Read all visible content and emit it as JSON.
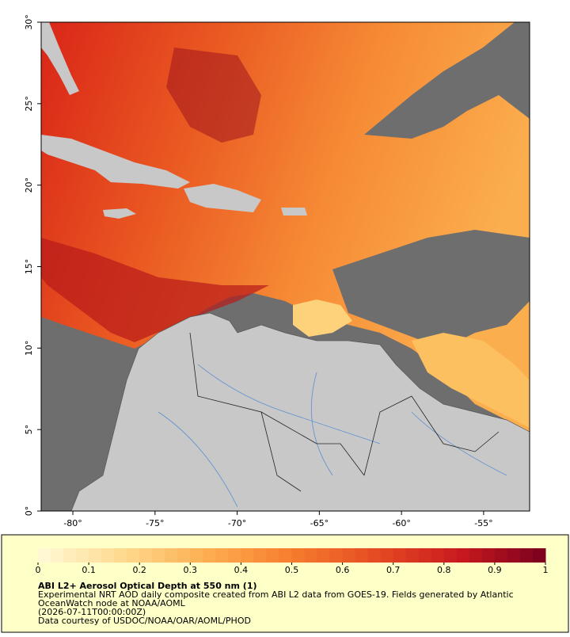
{
  "map": {
    "xlim": [
      -81.93,
      -52.2
    ],
    "ylim": [
      0,
      30
    ],
    "xticks": [
      {
        "value": -80,
        "label": "-80°"
      },
      {
        "value": -75,
        "label": "-75°"
      },
      {
        "value": -70,
        "label": "-70°"
      },
      {
        "value": -65,
        "label": "-65°"
      },
      {
        "value": -60,
        "label": "-60°"
      },
      {
        "value": -55,
        "label": "-55°"
      }
    ],
    "yticks": [
      {
        "value": 0,
        "label": "0°"
      },
      {
        "value": 5,
        "label": "5°"
      },
      {
        "value": 10,
        "label": "10°"
      },
      {
        "value": 15,
        "label": "15°"
      },
      {
        "value": 20,
        "label": "20°"
      },
      {
        "value": 25,
        "label": "25°"
      },
      {
        "value": 30,
        "label": "30°"
      }
    ]
  },
  "colorbar": {
    "range": [
      0,
      1
    ],
    "ticks": [
      0,
      0.1,
      0.2,
      0.3,
      0.4,
      0.5,
      0.6,
      0.7,
      0.8,
      0.9,
      1
    ]
  },
  "caption": {
    "title": "ABI L2+ Aerosol Optical Depth at 550 nm (1)",
    "lines": [
      "Experimental NRT AOD daily composite created from ABI L2 data from GOES-19. Fields generated by Atlantic",
      "OceanWatch node at NOAA/AOML",
      "(2026-07-11T00:00:00Z)",
      "Data courtesy of USDOC/NOAA/OAR/AOML/PHOD"
    ]
  }
}
